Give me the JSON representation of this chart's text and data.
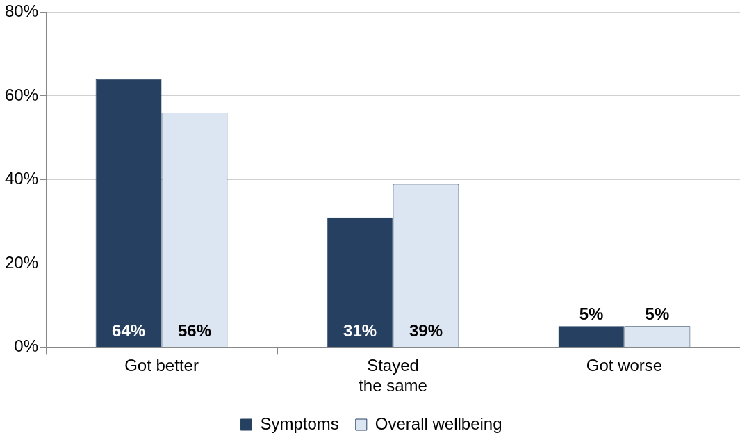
{
  "chart_data": {
    "type": "bar",
    "categories": [
      "Got better",
      "Stayed the same",
      "Got worse"
    ],
    "series": [
      {
        "name": "Symptoms",
        "color": "#264061",
        "values": [
          64,
          31,
          5
        ],
        "value_labels": [
          "64%",
          "31%",
          "5%"
        ]
      },
      {
        "name": "Overall wellbeing",
        "color": "#dce6f2",
        "values": [
          56,
          39,
          5
        ],
        "value_labels": [
          "56%",
          "39%",
          "5%"
        ]
      }
    ],
    "ylim": [
      0,
      80
    ],
    "yticks": [
      {
        "value": 0,
        "label": "0%"
      },
      {
        "value": 20,
        "label": "20%"
      },
      {
        "value": 40,
        "label": "40%"
      },
      {
        "value": 60,
        "label": "60%"
      },
      {
        "value": 80,
        "label": "80%"
      }
    ],
    "grid": "y",
    "legend": "bottom"
  }
}
